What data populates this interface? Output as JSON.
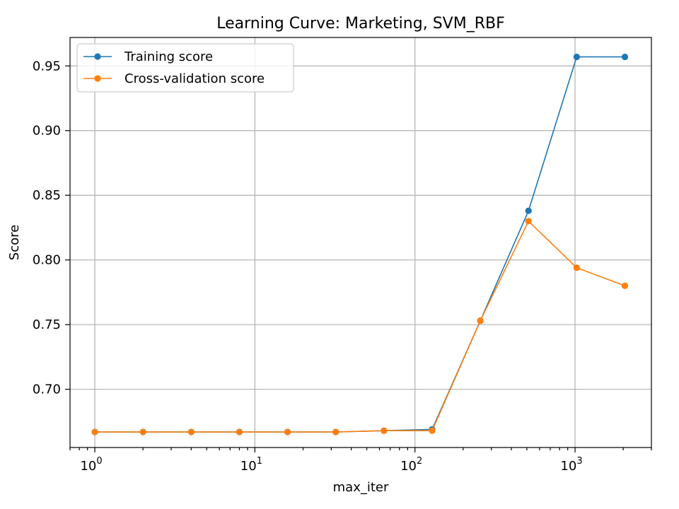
{
  "chart_data": {
    "type": "line",
    "title": "Learning Curve: Marketing, SVM_RBF",
    "xlabel": "max_iter",
    "ylabel": "Score",
    "xscale": "log",
    "xlim": [
      0.7,
      3000
    ],
    "ylim": [
      0.655,
      0.972
    ],
    "grid": true,
    "legend_position": "top-left",
    "x": [
      1,
      2,
      4,
      8,
      16,
      32,
      64,
      128,
      256,
      512,
      1024,
      2048
    ],
    "x_major_ticks": [
      1,
      10,
      100,
      1000
    ],
    "x_tick_labels": [
      {
        "base": "10",
        "exp": "0"
      },
      {
        "base": "10",
        "exp": "1"
      },
      {
        "base": "10",
        "exp": "2"
      },
      {
        "base": "10",
        "exp": "3"
      }
    ],
    "y_ticks": [
      0.7,
      0.75,
      0.8,
      0.85,
      0.9,
      0.95
    ],
    "y_tick_labels": [
      "0.70",
      "0.75",
      "0.80",
      "0.85",
      "0.90",
      "0.95"
    ],
    "series": [
      {
        "name": "Training score",
        "color": "#1f77b4",
        "values": [
          0.667,
          0.667,
          0.667,
          0.667,
          0.667,
          0.667,
          0.668,
          0.669,
          0.753,
          0.838,
          0.957,
          0.957
        ]
      },
      {
        "name": "Cross-validation score",
        "color": "#ff7f0e",
        "values": [
          0.667,
          0.667,
          0.667,
          0.667,
          0.667,
          0.667,
          0.668,
          0.668,
          0.753,
          0.83,
          0.794,
          0.78
        ]
      }
    ]
  }
}
